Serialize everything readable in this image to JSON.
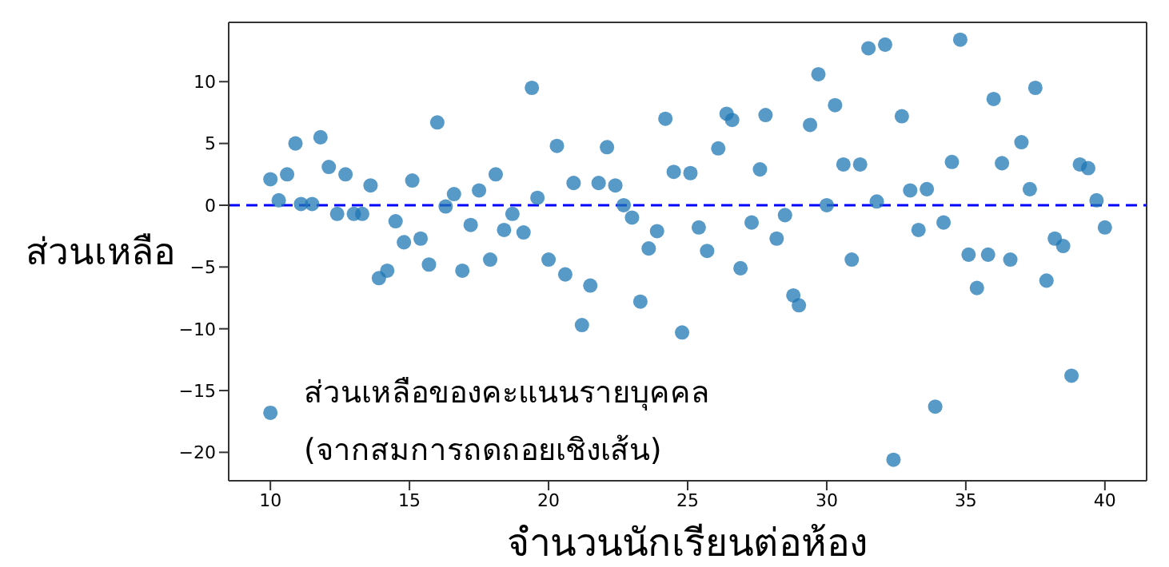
{
  "chart_data": {
    "type": "scatter",
    "xlabel": "จำนวนนักเรียนต่อห้อง",
    "ylabel": "ส่วนเหลือ",
    "annotations": [
      "ส่วนเหลือของคะแนนรายบุคคล\n(จากสมการถดถอยเชิงเส้น)"
    ],
    "xlim": [
      8.5,
      41.5
    ],
    "xticks": [
      10,
      15,
      20,
      25,
      30,
      35,
      40
    ],
    "ylim": [
      -22.3,
      14.8
    ],
    "yticks": [
      -20,
      -15,
      -10,
      -5,
      0,
      5,
      10
    ],
    "grid": false,
    "marker": "circle",
    "ref_lines": [
      {
        "axis": "y",
        "value": 0,
        "color": "#0000ff",
        "line_style": "dashed"
      }
    ],
    "series": [
      {
        "color": "#1f77b4",
        "x": [
          10.0,
          10.3,
          10.6,
          10.9,
          11.1,
          11.5,
          11.8,
          12.1,
          12.4,
          12.7,
          13.0,
          13.3,
          13.6,
          13.9,
          14.2,
          14.5,
          14.8,
          15.1,
          15.4,
          15.7,
          16.0,
          16.3,
          16.6,
          16.9,
          17.2,
          17.5,
          17.9,
          18.1,
          18.4,
          18.7,
          19.1,
          19.4,
          19.6,
          20.0,
          20.3,
          20.6,
          20.9,
          21.2,
          21.5,
          21.8,
          22.1,
          22.4,
          22.7,
          23.0,
          23.3,
          23.6,
          23.9,
          24.2,
          24.5,
          24.8,
          25.1,
          25.4,
          25.7,
          26.1,
          26.4,
          26.6,
          26.9,
          27.3,
          27.6,
          27.8,
          28.2,
          28.5,
          28.8,
          29.0,
          29.4,
          29.7,
          30.0,
          30.3,
          30.6,
          30.9,
          31.2,
          31.5,
          31.8,
          32.1,
          32.4,
          32.7,
          33.0,
          33.3,
          33.6,
          33.9,
          34.2,
          34.5,
          34.8,
          35.1,
          35.4,
          35.8,
          36.0,
          36.3,
          36.6,
          37.0,
          37.3,
          37.5,
          37.9,
          38.2,
          38.5,
          38.8,
          39.1,
          39.4,
          39.7,
          40.0,
          10.0
        ],
        "values": [
          2.1,
          0.4,
          2.5,
          5.0,
          0.1,
          0.1,
          5.5,
          3.1,
          -0.7,
          2.5,
          -0.7,
          -0.7,
          1.6,
          -5.9,
          -5.3,
          -1.3,
          -3.0,
          2.0,
          -2.7,
          -4.8,
          6.7,
          -0.1,
          0.9,
          -5.3,
          -1.6,
          1.2,
          -4.4,
          2.5,
          -2.0,
          -0.7,
          -2.2,
          9.5,
          0.6,
          -4.4,
          4.8,
          -5.6,
          1.8,
          -9.7,
          -6.5,
          1.8,
          4.7,
          1.6,
          0.0,
          -1.0,
          -7.8,
          -3.5,
          -2.1,
          7.0,
          2.7,
          -10.3,
          2.6,
          -1.8,
          -3.7,
          4.6,
          7.4,
          6.9,
          -5.1,
          -1.4,
          2.9,
          7.3,
          -2.7,
          -0.8,
          -7.3,
          -8.1,
          6.5,
          10.6,
          0.0,
          8.1,
          3.3,
          -4.4,
          3.3,
          12.7,
          0.3,
          13.0,
          -20.6,
          7.2,
          1.2,
          -2.0,
          1.3,
          -16.3,
          -1.4,
          3.5,
          13.4,
          -4.0,
          -6.7,
          -4.0,
          8.6,
          3.4,
          -4.4,
          5.1,
          1.3,
          9.5,
          -6.1,
          -2.7,
          -3.3,
          -13.8,
          3.3,
          3.0,
          0.4,
          -1.8,
          -16.8
        ]
      }
    ]
  }
}
